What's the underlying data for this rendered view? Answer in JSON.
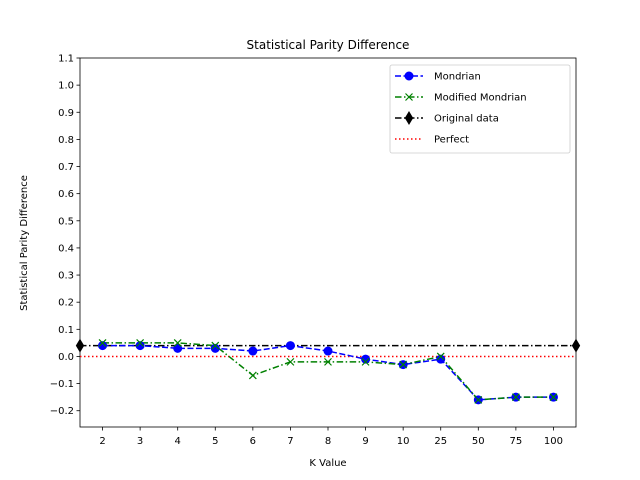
{
  "chart_data": {
    "type": "line",
    "title": "Statistical Parity Difference",
    "xlabel": "K Value",
    "ylabel": "Statistical Parity Difference",
    "categories": [
      "2",
      "3",
      "4",
      "5",
      "6",
      "7",
      "8",
      "9",
      "10",
      "25",
      "50",
      "75",
      "100"
    ],
    "ylim": [
      -0.26,
      1.1
    ],
    "yticks": [
      -0.2,
      -0.1,
      0.0,
      0.1,
      0.2,
      0.3,
      0.4,
      0.5,
      0.6,
      0.7,
      0.8,
      0.9,
      1.0,
      1.1
    ],
    "ytick_labels": [
      "−0.2",
      "−0.1",
      "0.0",
      "0.1",
      "0.2",
      "0.3",
      "0.4",
      "0.5",
      "0.6",
      "0.7",
      "0.8",
      "0.9",
      "1.0",
      "1.1"
    ],
    "grid": false,
    "legend_position": "top-right",
    "series": [
      {
        "name": "Mondrian",
        "color": "#0000ff",
        "line_style": "dashed",
        "marker": "circle",
        "values": [
          0.04,
          0.04,
          0.03,
          0.03,
          0.02,
          0.04,
          0.02,
          -0.01,
          -0.03,
          -0.01,
          -0.16,
          -0.15,
          -0.15
        ]
      },
      {
        "name": "Modified Mondrian",
        "color": "#008000",
        "line_style": "dashdot",
        "marker": "x",
        "values": [
          0.05,
          0.05,
          0.05,
          0.04,
          -0.07,
          -0.02,
          -0.02,
          -0.02,
          -0.03,
          0.0,
          -0.16,
          -0.15,
          -0.15
        ]
      }
    ],
    "reference_lines": [
      {
        "name": "Original data",
        "color": "#000000",
        "line_style": "dashdot",
        "marker": "diamond",
        "value": 0.04
      },
      {
        "name": "Perfect",
        "color": "#ff0000",
        "line_style": "dotted",
        "marker": "none",
        "value": 0.0
      }
    ]
  }
}
